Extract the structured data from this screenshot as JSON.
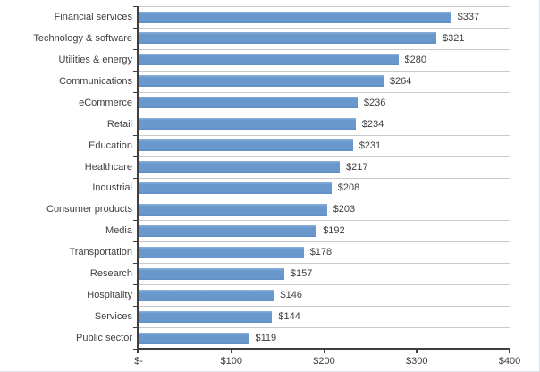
{
  "chart_data": {
    "type": "bar",
    "orientation": "horizontal",
    "title": "",
    "xlabel": "",
    "ylabel": "",
    "legend": "none",
    "grid": "category-boundary horizontal gridlines",
    "categories": [
      "Financial services",
      "Technology & software",
      "Utilities & energy",
      "Communications",
      "eCommerce",
      "Retail",
      "Education",
      "Healthcare",
      "Industrial",
      "Consumer products",
      "Media",
      "Transportation",
      "Research",
      "Hospitality",
      "Services",
      "Public sector"
    ],
    "values": [
      337,
      321,
      280,
      264,
      236,
      234,
      231,
      217,
      208,
      203,
      192,
      178,
      157,
      146,
      144,
      119
    ],
    "value_labels": [
      "$337",
      "$321",
      "$280",
      "$264",
      "$236",
      "$234",
      "$231",
      "$217",
      "$208",
      "$203",
      "$192",
      "$178",
      "$157",
      "$146",
      "$144",
      "$119"
    ],
    "x_ticks": [
      "$-",
      "$100",
      "$200",
      "$300",
      "$400"
    ],
    "x_tick_values": [
      0,
      100,
      200,
      300,
      400
    ],
    "xlim": [
      0,
      400
    ],
    "colors": {
      "bar": "#6998cd",
      "gridline": "#c9c9c9",
      "axis": "#3f3f3f",
      "text": "#3f3f3f",
      "background": "#ffffff"
    }
  }
}
